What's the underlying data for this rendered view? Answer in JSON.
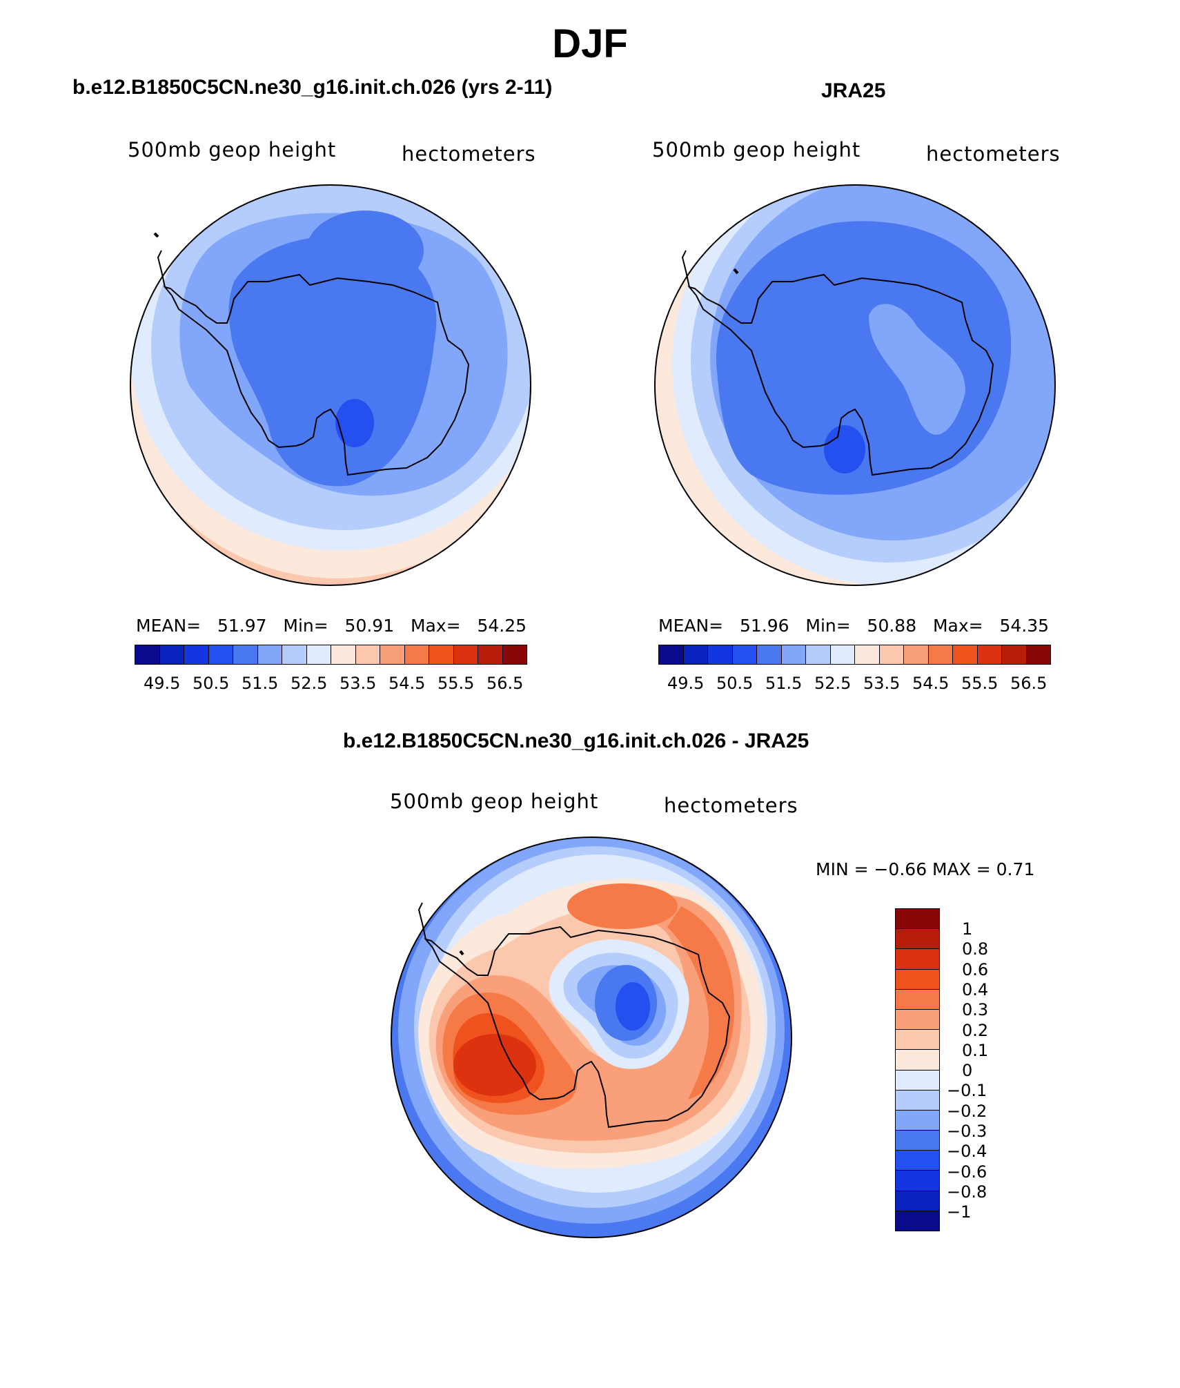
{
  "title": "DJF",
  "panels": [
    {
      "heading": "b.e12.B1850C5CN.ne30_g16.init.ch.026 (yrs 2-11)",
      "left_label": "500mb  geop  height",
      "right_label": "hectometers",
      "stats": {
        "mean_label": "MEAN=",
        "mean": "51.97",
        "min_label": "Min=",
        "min": "50.91",
        "max_label": "Max=",
        "max": "54.25"
      }
    },
    {
      "heading": "JRA25",
      "left_label": "500mb  geop  height",
      "right_label": "hectometers",
      "stats": {
        "mean_label": "MEAN=",
        "mean": "51.96",
        "min_label": "Min=",
        "min": "50.88",
        "max_label": "Max=",
        "max": "54.35"
      }
    },
    {
      "heading": "b.e12.B1850C5CN.ne30_g16.init.ch.026 - JRA25",
      "left_label": "500mb  geop  height",
      "right_label": "hectometers",
      "stats_text": "MIN =   −0.66  MAX =     0.71"
    }
  ],
  "colorbar_abs": {
    "colors": [
      "#0a0a8c",
      "#0a22c0",
      "#1237e2",
      "#2450f0",
      "#4a78f0",
      "#82a6fa",
      "#b4cdfc",
      "#e0ecfd",
      "#fde9dc",
      "#fcc8ad",
      "#f9a07a",
      "#f67a48",
      "#f0521e",
      "#dd3210",
      "#b81c0a",
      "#8a0707"
    ],
    "labels": [
      "49.5",
      "50.5",
      "51.5",
      "52.5",
      "53.5",
      "54.5",
      "55.5",
      "56.5"
    ]
  },
  "colorbar_diff": {
    "colors": [
      "#8a0707",
      "#b81c0a",
      "#dd3210",
      "#f0521e",
      "#f67a48",
      "#f9a07a",
      "#fcc8ad",
      "#fde9dc",
      "#e0ecfd",
      "#b4cdfc",
      "#82a6fa",
      "#4a78f0",
      "#2450f0",
      "#1237e2",
      "#0a22c0",
      "#0a0a8c"
    ],
    "labels": [
      "1",
      "0.8",
      "0.6",
      "0.4",
      "0.3",
      "0.2",
      "0.1",
      "0",
      "−0.1",
      "−0.2",
      "−0.3",
      "−0.4",
      "−0.6",
      "−0.8",
      "−1"
    ]
  },
  "map_colors": {
    "pos_3": "#dd3210",
    "pos_2": "#f0521e",
    "pos_15": "#f67a48",
    "pos_1": "#f9a07a",
    "pos_05": "#fcc8ad",
    "pos_0": "#fde9dc",
    "neg_0": "#e0ecfd",
    "neg_1": "#b4cdfc",
    "neg_2": "#82a6fa",
    "neg_3": "#4a78f0",
    "neg_4": "#2450f0",
    "coast": "#000000"
  }
}
